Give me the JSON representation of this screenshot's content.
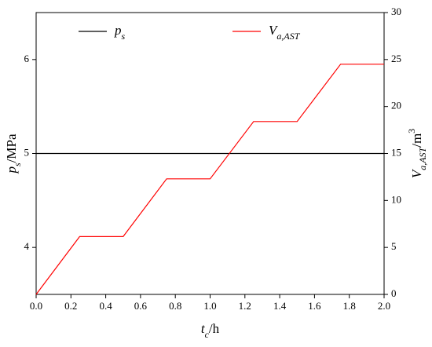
{
  "chart_data": {
    "type": "line",
    "xlabel": [
      "t",
      "c",
      "/h"
    ],
    "ylabel": [
      "p",
      "s",
      "/MPa"
    ],
    "y2label": [
      "V",
      "a,AST",
      "/m",
      "3"
    ],
    "xlim": [
      0,
      2
    ],
    "xticks": [
      {
        "value": 0,
        "label": "0.0"
      },
      0.2,
      0.4,
      0.6,
      0.8,
      {
        "value": 1,
        "label": "1.0"
      },
      1.2,
      1.4,
      1.6,
      1.8,
      {
        "value": 2,
        "label": "2.0"
      }
    ],
    "ylim": [
      3.5,
      6.5
    ],
    "yticks": [
      4,
      5,
      6
    ],
    "y2lim": [
      0,
      30
    ],
    "y2ticks": [
      0,
      5,
      10,
      15,
      20,
      25,
      30
    ],
    "series": [
      {
        "name": [
          "p",
          "s"
        ],
        "color": "#000000",
        "x": [
          0,
          2
        ],
        "values": [
          5,
          5
        ]
      },
      {
        "name": [
          "V",
          "a,AST"
        ],
        "color": "#ff0000",
        "axis": "y2",
        "x": [
          0,
          0.25,
          0.5,
          0.75,
          1.0,
          1.25,
          1.5,
          1.75,
          2.0
        ],
        "values": [
          0,
          6.15,
          6.15,
          12.3,
          12.3,
          18.4,
          18.4,
          24.5,
          24.5
        ]
      }
    ]
  }
}
